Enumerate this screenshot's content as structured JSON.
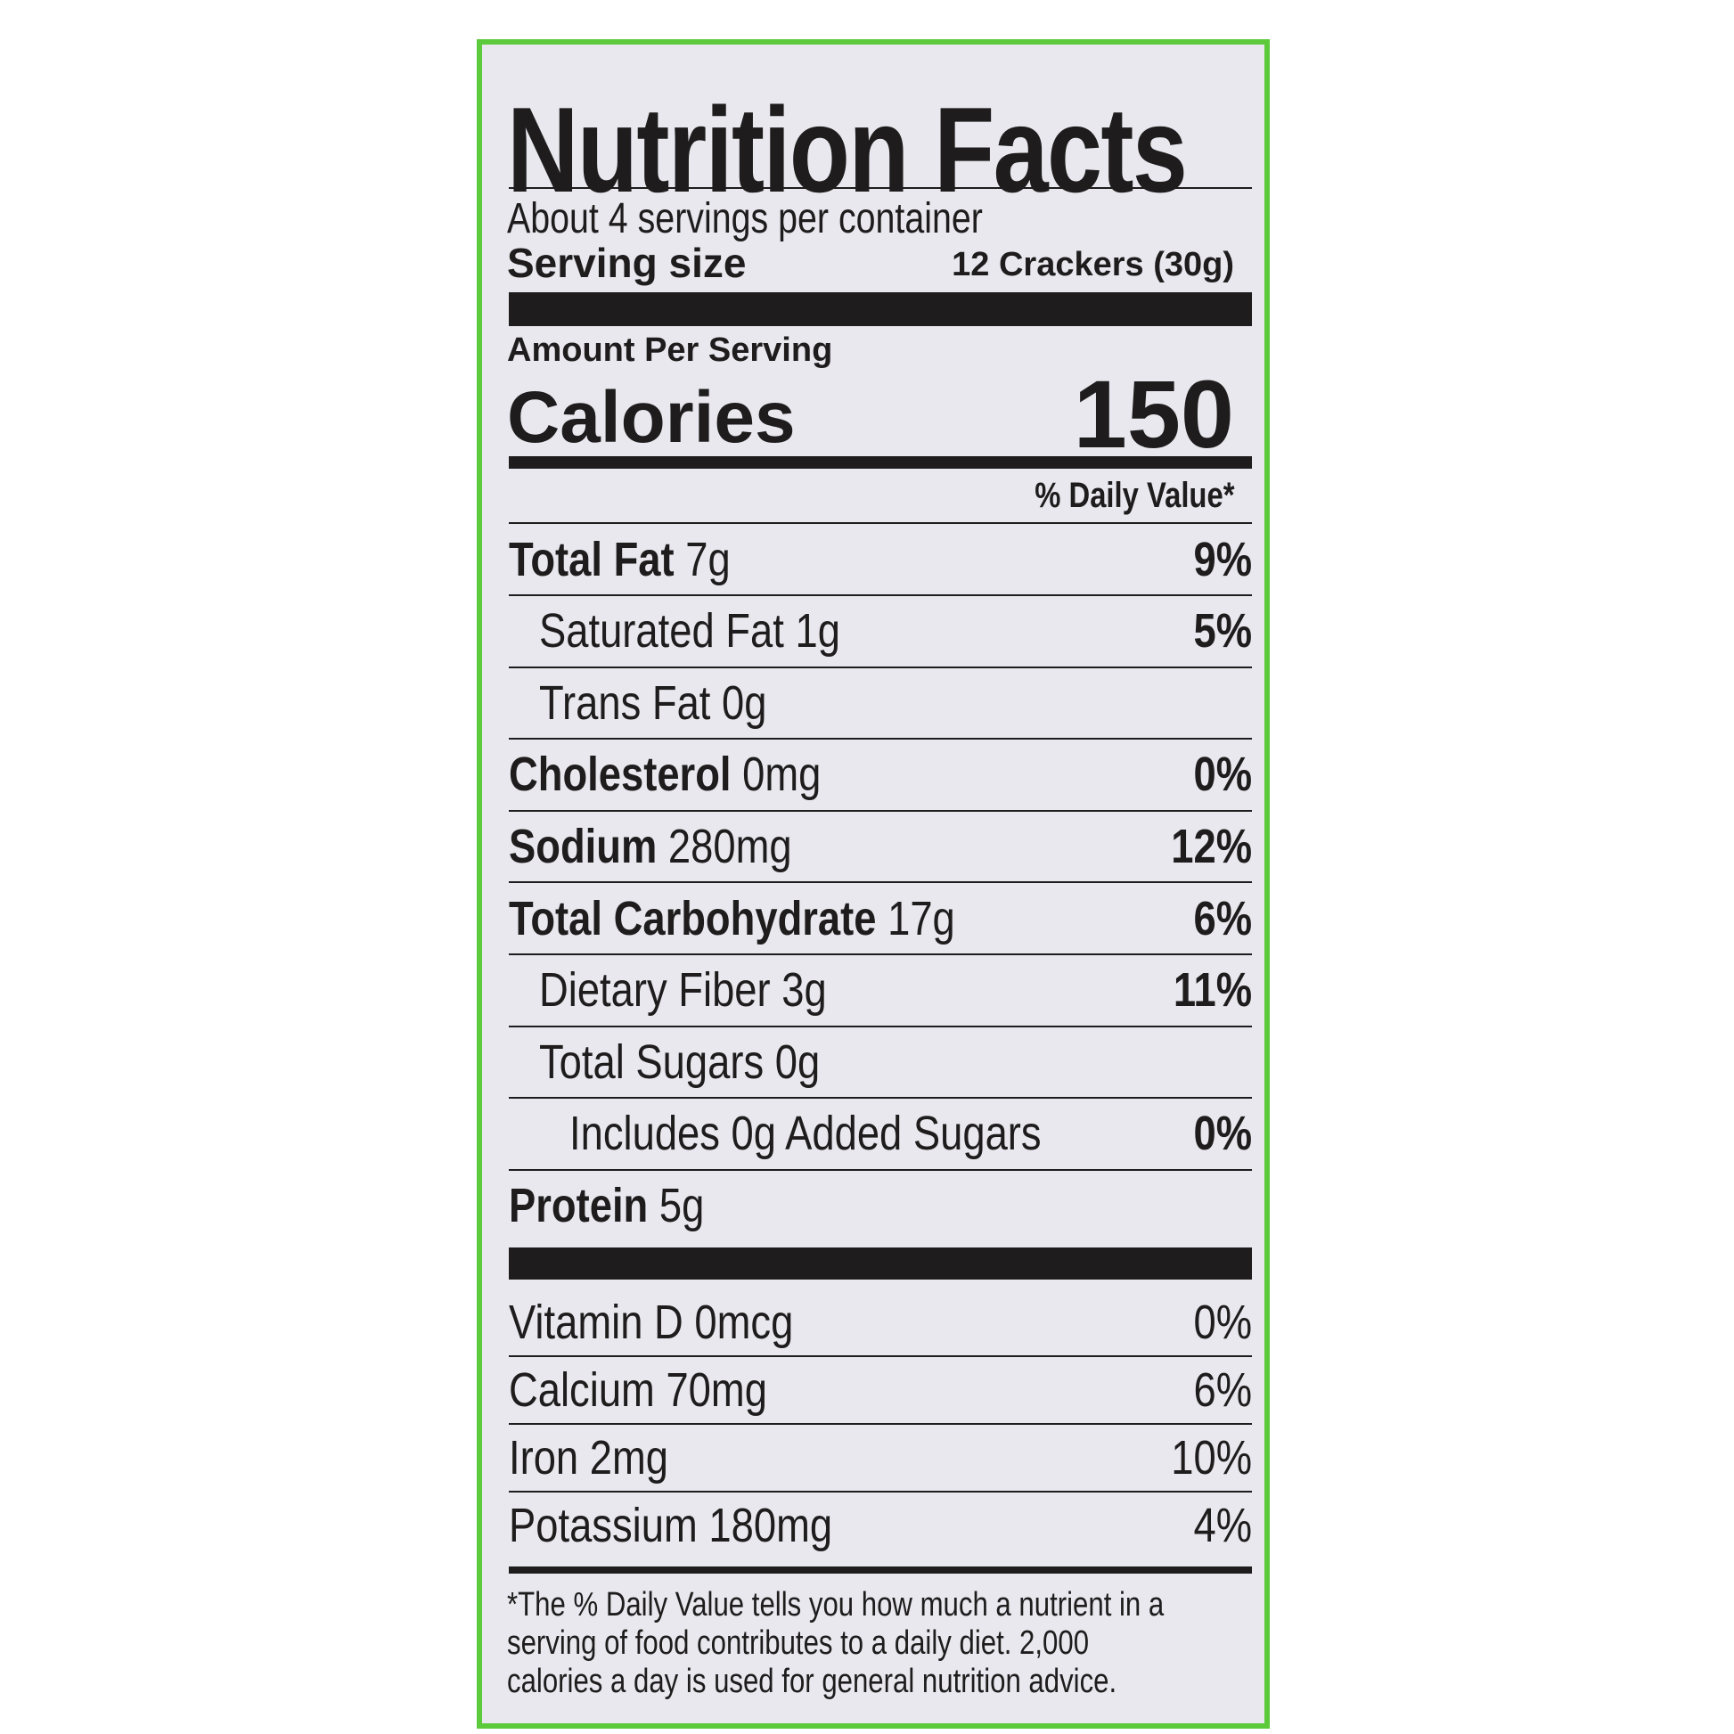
{
  "header": {
    "title": "Nutrition Facts",
    "servings": "About 4 servings per container",
    "serving_size_label": "Serving size",
    "serving_size_value": "12 Crackers (30g)"
  },
  "calories": {
    "amount_label": "Amount Per Serving",
    "label": "Calories",
    "value": "150"
  },
  "daily_value_header": "% Daily Value*",
  "nutrients": [
    {
      "name": "Total Fat",
      "amount": "7g",
      "dv": "9%"
    },
    {
      "name": "Saturated Fat",
      "amount": "1g",
      "dv": "5%"
    },
    {
      "name": "Trans Fat",
      "amount": "0g"
    },
    {
      "name": "Cholesterol",
      "amount": "0mg",
      "dv": "0%"
    },
    {
      "name": "Sodium",
      "amount": "280mg",
      "dv": "12%"
    },
    {
      "name": "Total Carbohydrate",
      "amount": "17g",
      "dv": "6%"
    },
    {
      "name": "Dietary Fiber",
      "amount": "3g",
      "dv": "11%"
    },
    {
      "name": "Total Sugars",
      "amount": "0g"
    },
    {
      "name": "Includes 0g Added Sugars",
      "dv": "0%"
    },
    {
      "name": "Protein",
      "amount": "5g"
    }
  ],
  "vitamins": [
    {
      "name": "Vitamin D",
      "amount": "0mcg",
      "dv": "0%"
    },
    {
      "name": "Calcium",
      "amount": "70mg",
      "dv": "6%"
    },
    {
      "name": "Iron",
      "amount": "2mg",
      "dv": "10%"
    },
    {
      "name": "Potassium",
      "amount": "180mg",
      "dv": "4%"
    }
  ],
  "footnote": "*The % Daily Value tells you how much a nutrient in a serving of food contributes to a daily diet. 2,000 calories a day is used for general nutrition advice."
}
